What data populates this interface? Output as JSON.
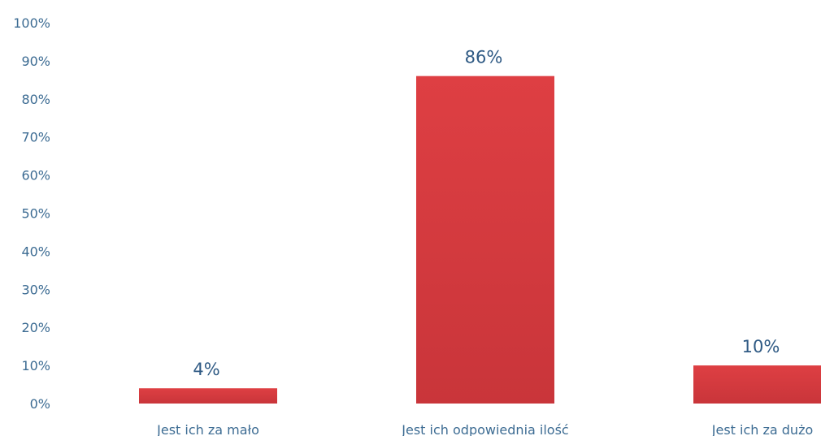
{
  "chart_data": {
    "type": "bar",
    "categories": [
      "Jest ich za mało",
      "Jest ich odpowiednia ilość",
      "Jest ich za dużo"
    ],
    "values": [
      4,
      86,
      10
    ],
    "data_labels": [
      "4%",
      "86%",
      "10%"
    ],
    "y_ticks": [
      "0%",
      "10%",
      "20%",
      "30%",
      "40%",
      "50%",
      "60%",
      "70%",
      "80%",
      "90%",
      "100%"
    ],
    "ylim": [
      0,
      100
    ],
    "title": "",
    "xlabel": "",
    "ylabel": "",
    "grid": false,
    "legend": "none",
    "bar_color": "#d63a3d",
    "bar_color_dark": "#c42e32"
  }
}
